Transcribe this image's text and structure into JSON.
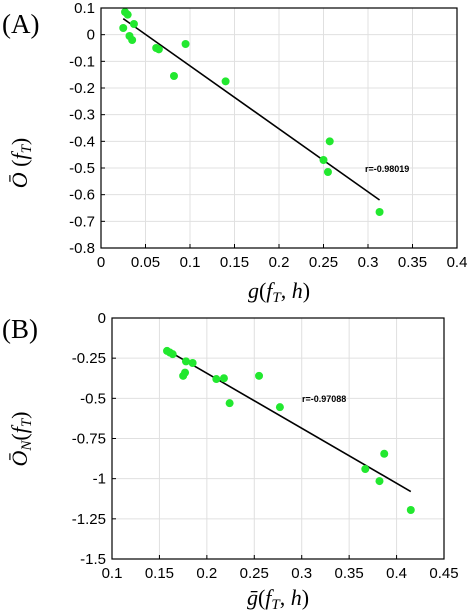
{
  "chart_data": [
    {
      "panel_label": "(A)",
      "type": "scatter",
      "xlabel": "g(f_T, h)",
      "ylabel": "Ō (f_T)",
      "xlim": [
        0,
        0.4
      ],
      "ylim": [
        -0.8,
        0.1
      ],
      "xticks": [
        0,
        0.05,
        0.1,
        0.15,
        0.2,
        0.25,
        0.3,
        0.35,
        0.4
      ],
      "xtick_labels": [
        "0",
        "0.05",
        "0.1",
        "0.15",
        "0.2",
        "0.25",
        "0.3",
        "0.35",
        "0.4"
      ],
      "yticks": [
        0.1,
        0,
        -0.1,
        -0.2,
        -0.3,
        -0.4,
        -0.5,
        -0.6,
        -0.7,
        -0.8
      ],
      "ytick_labels": [
        "0.1",
        "0",
        "-0.1",
        "-0.2",
        "-0.3",
        "-0.4",
        "-0.5",
        "-0.6",
        "-0.7",
        "-0.8"
      ],
      "grid": true,
      "point_color": "#22e82f",
      "line_color": "#000000",
      "points": [
        {
          "x": 0.025,
          "y": 0.025
        },
        {
          "x": 0.027,
          "y": 0.085
        },
        {
          "x": 0.03,
          "y": 0.075
        },
        {
          "x": 0.032,
          "y": -0.005
        },
        {
          "x": 0.035,
          "y": -0.02
        },
        {
          "x": 0.037,
          "y": 0.04
        },
        {
          "x": 0.062,
          "y": -0.05
        },
        {
          "x": 0.065,
          "y": -0.055
        },
        {
          "x": 0.082,
          "y": -0.155
        },
        {
          "x": 0.095,
          "y": -0.035
        },
        {
          "x": 0.14,
          "y": -0.175
        },
        {
          "x": 0.25,
          "y": -0.47
        },
        {
          "x": 0.255,
          "y": -0.515
        },
        {
          "x": 0.257,
          "y": -0.4
        },
        {
          "x": 0.313,
          "y": -0.665
        }
      ],
      "fit_line": [
        {
          "x": 0.025,
          "y": 0.06
        },
        {
          "x": 0.313,
          "y": -0.62
        }
      ],
      "annotation": "r=-0.98019",
      "annotation_at": {
        "x": 0.3,
        "y": -0.51
      }
    },
    {
      "panel_label": "(B)",
      "type": "scatter",
      "xlabel": "ḡ(f_T, h)",
      "ylabel": "Ō_N(f_T)",
      "xlim": [
        0.1,
        0.45
      ],
      "ylim": [
        -1.5,
        0
      ],
      "xticks": [
        0.1,
        0.15,
        0.2,
        0.25,
        0.3,
        0.35,
        0.4,
        0.45
      ],
      "xtick_labels": [
        "0.1",
        "0.15",
        "0.2",
        "0.25",
        "0.3",
        "0.35",
        "0.4",
        "0.45"
      ],
      "yticks": [
        0,
        -0.25,
        -0.5,
        -0.75,
        -1,
        -1.25,
        -1.5
      ],
      "ytick_labels": [
        "0",
        "-0.25",
        "-0.5",
        "-0.75",
        "-1",
        "-1.25",
        "-1.5"
      ],
      "grid": true,
      "point_color": "#22e82f",
      "line_color": "#000000",
      "points": [
        {
          "x": 0.158,
          "y": -0.205
        },
        {
          "x": 0.161,
          "y": -0.215
        },
        {
          "x": 0.164,
          "y": -0.225
        },
        {
          "x": 0.175,
          "y": -0.36
        },
        {
          "x": 0.177,
          "y": -0.34
        },
        {
          "x": 0.178,
          "y": -0.27
        },
        {
          "x": 0.185,
          "y": -0.28
        },
        {
          "x": 0.21,
          "y": -0.38
        },
        {
          "x": 0.218,
          "y": -0.375
        },
        {
          "x": 0.224,
          "y": -0.53
        },
        {
          "x": 0.255,
          "y": -0.36
        },
        {
          "x": 0.277,
          "y": -0.555
        },
        {
          "x": 0.367,
          "y": -0.94
        },
        {
          "x": 0.382,
          "y": -1.015
        },
        {
          "x": 0.387,
          "y": -0.845
        },
        {
          "x": 0.415,
          "y": -1.195
        }
      ],
      "fit_line": [
        {
          "x": 0.158,
          "y": -0.2
        },
        {
          "x": 0.415,
          "y": -1.08
        }
      ],
      "annotation": "r=-0.97088",
      "annotation_at": {
        "x": 0.294,
        "y": -0.48
      }
    }
  ]
}
